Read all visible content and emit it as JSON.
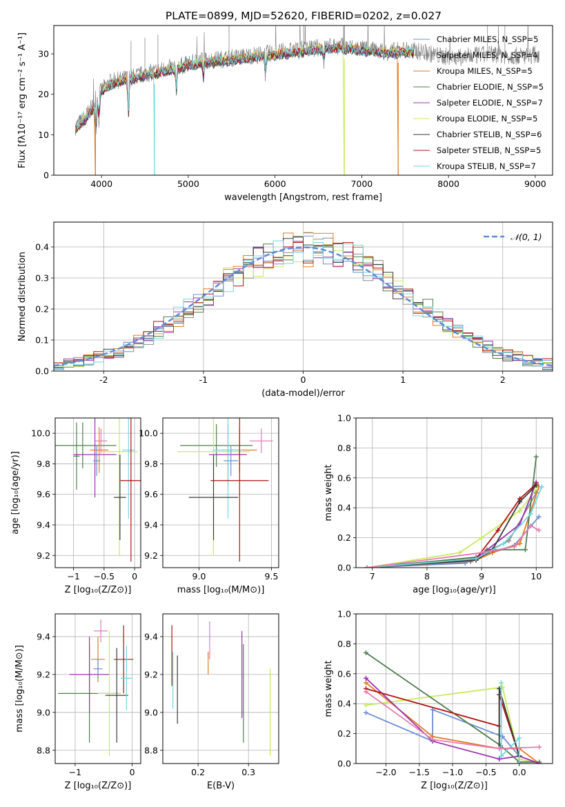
{
  "title": "PLATE=0899, MJD=52620, FIBERID=0202, z=0.027",
  "colors": {
    "Chabrier MILES": "#6b8ed6",
    "Salpeter MILES": "#8c8c8c",
    "Kroupa MILES": "#e07a1f",
    "Chabrier ELODIE": "#4e7d4e",
    "Salpeter ELODIE": "#9b30b0",
    "Kroupa ELODIE": "#c8ea5a",
    "Chabrier STELIB": "#3a3a3a",
    "Salpeter STELIB": "#b01010",
    "Kroupa STELIB": "#6fd6e0",
    "gaussian": "#5b8bd9",
    "pink": "#e37bb5"
  },
  "chart_data": [
    {
      "id": "spectrum",
      "type": "line",
      "xlabel": "wavelength [Angstrom, rest frame]",
      "ylabel": "Flux [fλ10⁻¹⁷ erg cm⁻² s⁻¹ A⁻¹]",
      "xlim": [
        3450,
        9200
      ],
      "ylim": [
        0,
        37
      ],
      "xticks": [
        4000,
        5000,
        6000,
        7000,
        8000,
        9000
      ],
      "yticks": [
        0,
        10,
        20,
        30
      ],
      "legend_position": "top-right",
      "legend": [
        "Chabrier MILES, N_SSP=5",
        "Salpeter MILES, N_SSP=4",
        "Kroupa MILES, N_SSP=5",
        "Chabrier ELODIE, N_SSP=5",
        "Salpeter ELODIE, N_SSP=7",
        "Kroupa ELODIE, N_SSP=5",
        "Chabrier STELIB, N_SSP=6",
        "Salpeter STELIB, N_SSP=5",
        "Kroupa STELIB, N_SSP=7"
      ],
      "data_envelope": {
        "x": [
          3700,
          3800,
          3900,
          4000,
          4100,
          4300,
          4500,
          4700,
          4900,
          5100,
          5300,
          5500,
          5700,
          5900,
          6100,
          6300,
          6500,
          6700,
          6900,
          7100,
          7300,
          7500,
          7700,
          7900,
          8100,
          8300,
          8500,
          8700,
          8900,
          9050
        ],
        "y": [
          12,
          14,
          17,
          21,
          23,
          24,
          25,
          26,
          27,
          28,
          28.5,
          29,
          29.5,
          30,
          30.5,
          31,
          31.5,
          32,
          31.5,
          31,
          30.5,
          31,
          30.5,
          29.5,
          29,
          29.5,
          30,
          29.5,
          29.5,
          30
        ]
      },
      "model_range": [
        3700,
        7600
      ],
      "cutoffs": [
        {
          "model": "Kroupa MILES",
          "x": 3930
        },
        {
          "model": "Kroupa STELIB",
          "x": 4610
        },
        {
          "model": "Kroupa ELODIE",
          "x": 6800
        },
        {
          "model": "Kroupa MILES",
          "x": 7420
        }
      ]
    },
    {
      "id": "residuals",
      "type": "histogram",
      "xlabel": "(data-model)/error",
      "ylabel": "Normed distribution",
      "xlim": [
        -2.5,
        2.5
      ],
      "ylim": [
        0,
        0.48
      ],
      "xticks": [
        -2,
        -1,
        0,
        1,
        2
      ],
      "yticks": [
        0.0,
        0.1,
        0.2,
        0.3,
        0.4
      ],
      "grid": true,
      "legend_position": "top-right",
      "legend": [
        "𝒩(0, 1)"
      ],
      "bin_width": 0.1
    },
    {
      "id": "age-vs-Z",
      "type": "scatter",
      "xlabel": "Z [log₁₀(Z/Z⊙)]",
      "ylabel": "age  [log₁₀(age/yr)]",
      "xlim": [
        -1.3,
        0.1
      ],
      "ylim": [
        9.12,
        10.1
      ],
      "xticks": [
        -1,
        -0.5,
        0
      ],
      "xticklabels": [
        "−1",
        "−0.5",
        "0"
      ],
      "yticks": [
        9.2,
        9.4,
        9.6,
        9.8,
        10.0
      ],
      "grid": true,
      "points": [
        {
          "model": "Chabrier ELODIE",
          "x": -0.85,
          "y": 9.92,
          "xerr": 0.55,
          "yerr": 0.15
        },
        {
          "model": "Chabrier ELODIE",
          "x": -0.95,
          "y": 9.85,
          "xerr": 0.05,
          "yerr": 0.22
        },
        {
          "model": "Salpeter ELODIE",
          "x": -0.65,
          "y": 9.86,
          "xerr": 0.35,
          "yerr": 0.28
        },
        {
          "model": "Kroupa MILES",
          "x": -0.58,
          "y": 9.89,
          "xerr": 0.15,
          "yerr": 0.15
        },
        {
          "model": "pink",
          "x": -0.55,
          "y": 9.95,
          "xerr": 0.1,
          "yerr": 0.08
        },
        {
          "model": "Chabrier MILES",
          "x": -0.62,
          "y": 9.82,
          "xerr": 0.06,
          "yerr": 0.1
        },
        {
          "model": "Kroupa ELODIE",
          "x": -0.25,
          "y": 9.88,
          "xerr": 0.3,
          "yerr": 0.68
        },
        {
          "model": "Kroupa STELIB",
          "x": -0.1,
          "y": 9.89,
          "xerr": 0.1,
          "yerr": 0.45
        },
        {
          "model": "Salpeter STELIB",
          "x": -0.06,
          "y": 9.69,
          "xerr": 0.17,
          "yerr": 0.53
        },
        {
          "model": "Chabrier STELIB",
          "x": -0.24,
          "y": 9.58,
          "xerr": 0.1,
          "yerr": 0.28
        }
      ]
    },
    {
      "id": "age-vs-mass",
      "type": "scatter",
      "xlabel": "mass [log₁₀(M/M⊙)]",
      "ylabel": "",
      "xlim": [
        8.75,
        9.55
      ],
      "ylim": [
        9.12,
        10.1
      ],
      "xticks": [
        9.0,
        9.5
      ],
      "xticklabels": [
        "9.0",
        "9.5"
      ],
      "yticks": [
        9.2,
        9.4,
        9.6,
        9.8,
        10.0
      ],
      "grid": true,
      "points": [
        {
          "model": "Chabrier ELODIE",
          "x": 9.12,
          "y": 9.92,
          "xerr": 0.25,
          "yerr": 0.14
        },
        {
          "model": "Salpeter ELODIE",
          "x": 9.2,
          "y": 9.86,
          "xerr": 0.13,
          "yerr": 0.2
        },
        {
          "model": "Kroupa ELODIE",
          "x": 9.1,
          "y": 9.88,
          "xerr": 0.25,
          "yerr": 0.68
        },
        {
          "model": "Kroupa MILES",
          "x": 9.28,
          "y": 9.89,
          "xerr": 0.12,
          "yerr": 0.15
        },
        {
          "model": "pink",
          "x": 9.43,
          "y": 9.95,
          "xerr": 0.08,
          "yerr": 0.08
        },
        {
          "model": "Chabrier MILES",
          "x": 9.22,
          "y": 9.82,
          "xerr": 0.05,
          "yerr": 0.1
        },
        {
          "model": "Kroupa STELIB",
          "x": 9.2,
          "y": 9.89,
          "xerr": 0.1,
          "yerr": 0.45
        },
        {
          "model": "Salpeter STELIB",
          "x": 9.28,
          "y": 9.69,
          "xerr": 0.2,
          "yerr": 0.53
        },
        {
          "model": "Chabrier STELIB",
          "x": 9.1,
          "y": 9.58,
          "xerr": 0.17,
          "yerr": 0.28
        }
      ]
    },
    {
      "id": "weight-vs-age",
      "type": "line",
      "xlabel": "age  [log₁₀(age/yr)]",
      "ylabel": "mass weight",
      "xlim": [
        6.7,
        10.3
      ],
      "ylim": [
        0,
        1
      ],
      "xticks": [
        7,
        8,
        9,
        10
      ],
      "yticks": [
        0.0,
        0.2,
        0.4,
        0.6,
        0.8,
        1.0
      ],
      "grid": true,
      "series": [
        {
          "model": "Kroupa ELODIE",
          "x": [
            6.9,
            8.6,
            9.0,
            9.7,
            10.0
          ],
          "y": [
            0.0,
            0.1,
            0.2,
            0.38,
            0.52
          ]
        },
        {
          "model": "Chabrier MILES",
          "x": [
            6.9,
            8.7,
            9.0,
            9.6,
            10.05
          ],
          "y": [
            0.0,
            0.03,
            0.08,
            0.15,
            0.34
          ]
        },
        {
          "model": "Salpeter MILES",
          "x": [
            6.9,
            8.8,
            9.0,
            9.5,
            10.0
          ],
          "y": [
            0.0,
            0.04,
            0.09,
            0.18,
            0.5
          ]
        },
        {
          "model": "Kroupa MILES",
          "x": [
            6.9,
            8.9,
            9.2,
            9.7,
            10.05
          ],
          "y": [
            0.0,
            0.05,
            0.1,
            0.16,
            0.54
          ]
        },
        {
          "model": "Chabrier ELODIE",
          "x": [
            6.9,
            8.9,
            9.1,
            9.8,
            10.0
          ],
          "y": [
            0.0,
            0.07,
            0.12,
            0.12,
            0.74
          ]
        },
        {
          "model": "Salpeter ELODIE",
          "x": [
            6.9,
            8.8,
            9.0,
            9.7,
            10.0
          ],
          "y": [
            0.0,
            0.05,
            0.09,
            0.29,
            0.57
          ]
        },
        {
          "model": "Salpeter STELIB",
          "x": [
            6.9,
            8.9,
            9.3,
            9.7,
            10.0
          ],
          "y": [
            0.0,
            0.06,
            0.25,
            0.46,
            0.56
          ]
        },
        {
          "model": "Chabrier STELIB",
          "x": [
            6.9,
            8.9,
            9.2,
            9.7,
            10.0
          ],
          "y": [
            0.0,
            0.05,
            0.12,
            0.44,
            0.55
          ]
        },
        {
          "model": "Kroupa STELIB",
          "x": [
            6.9,
            8.9,
            9.4,
            9.9,
            10.1
          ],
          "y": [
            0.0,
            0.06,
            0.16,
            0.36,
            0.54
          ]
        },
        {
          "model": "pink",
          "x": [
            6.9,
            9.0,
            9.6,
            9.9,
            10.05
          ],
          "y": [
            0.0,
            0.1,
            0.14,
            0.28,
            0.25
          ]
        }
      ]
    },
    {
      "id": "mass-vs-Z",
      "type": "scatter",
      "xlabel": "Z [log₁₀(Z/Z⊙)]",
      "ylabel": "mass [log₁₀(M/M⊙)]",
      "xlim": [
        -1.35,
        0.15
      ],
      "ylim": [
        8.73,
        9.52
      ],
      "xticks": [
        -1,
        0
      ],
      "xticklabels": [
        "−1",
        "0"
      ],
      "yticks": [
        8.8,
        9.0,
        9.2,
        9.4
      ],
      "grid": true,
      "points": [
        {
          "model": "Chabrier ELODIE",
          "x": -0.75,
          "y": 9.1,
          "xerr": 0.55,
          "yerr": 0.26
        },
        {
          "model": "Salpeter ELODIE",
          "x": -0.75,
          "y": 9.2,
          "xerr": 0.35,
          "yerr": 0.2
        },
        {
          "model": "Kroupa MILES",
          "x": -0.6,
          "y": 9.28,
          "xerr": 0.12,
          "yerr": 0.12
        },
        {
          "model": "pink",
          "x": -0.55,
          "y": 9.43,
          "xerr": 0.12,
          "yerr": 0.06
        },
        {
          "model": "Chabrier MILES",
          "x": -0.6,
          "y": 9.23,
          "xerr": 0.08,
          "yerr": 0.05
        },
        {
          "model": "Kroupa ELODIE",
          "x": -0.4,
          "y": 9.1,
          "xerr": 0.2,
          "yerr": 0.33
        },
        {
          "model": "Chabrier STELIB",
          "x": -0.27,
          "y": 9.09,
          "xerr": 0.2,
          "yerr": 0.25
        },
        {
          "model": "Salpeter STELIB",
          "x": -0.15,
          "y": 9.28,
          "xerr": 0.17,
          "yerr": 0.18
        },
        {
          "model": "Kroupa STELIB",
          "x": -0.1,
          "y": 9.18,
          "xerr": 0.1,
          "yerr": 0.17
        }
      ]
    },
    {
      "id": "mass-vs-EBV",
      "type": "scatter",
      "xlabel": "E(B-V)",
      "ylabel": "",
      "xlim": [
        0.13,
        0.36
      ],
      "ylim": [
        8.73,
        9.52
      ],
      "xticks": [
        0.2,
        0.3
      ],
      "xticklabels": [
        "0.2",
        "0.3"
      ],
      "yticks": [
        8.8,
        9.0,
        9.2,
        9.4
      ],
      "grid": true,
      "points": [
        {
          "model": "Salpeter STELIB",
          "x": 0.148,
          "y": 9.3,
          "xerr": 0,
          "yerr": 0.16
        },
        {
          "model": "Kroupa STELIB",
          "x": 0.15,
          "y": 9.17,
          "xerr": 0,
          "yerr": 0.15
        },
        {
          "model": "Chabrier STELIB",
          "x": 0.159,
          "y": 9.12,
          "xerr": 0,
          "yerr": 0.18
        },
        {
          "model": "Kroupa MILES",
          "x": 0.22,
          "y": 9.26,
          "xerr": 0,
          "yerr": 0.06
        },
        {
          "model": "pink",
          "x": 0.223,
          "y": 9.38,
          "xerr": 0,
          "yerr": 0.1
        },
        {
          "model": "Salpeter ELODIE",
          "x": 0.287,
          "y": 9.2,
          "xerr": 0,
          "yerr": 0.23
        },
        {
          "model": "Chabrier ELODIE",
          "x": 0.29,
          "y": 9.1,
          "xerr": 0,
          "yerr": 0.26
        },
        {
          "model": "Kroupa ELODIE",
          "x": 0.343,
          "y": 9.0,
          "xerr": 0,
          "yerr": 0.23
        }
      ]
    },
    {
      "id": "weight-vs-Z",
      "type": "line",
      "xlabel": "Z [log₁₀(Z/Z⊙)]",
      "ylabel": "mass weight",
      "xlim": [
        -2.45,
        0.5
      ],
      "ylim": [
        0,
        1
      ],
      "xticks": [
        -2.0,
        -1.5,
        -1.0,
        -0.5,
        0.0
      ],
      "xticklabels": [
        "−2.0",
        "−1.5",
        "−1.0",
        "−0.5",
        "0.0"
      ],
      "yticks": [
        0.0,
        0.2,
        0.4,
        0.6,
        0.8,
        1.0
      ],
      "grid": true,
      "series": [
        {
          "model": "Kroupa ELODIE",
          "x": [
            -2.3,
            -0.25,
            0.0,
            0.3
          ],
          "y": [
            0.39,
            0.51,
            0.03,
            0.0
          ]
        },
        {
          "model": "Chabrier MILES",
          "x": [
            -2.3,
            -1.3,
            -1.3,
            -0.25,
            0.0,
            0.3
          ],
          "y": [
            0.34,
            0.15,
            0.36,
            0.18,
            0.05,
            0.0
          ]
        },
        {
          "model": "Kroupa MILES",
          "x": [
            -2.3,
            -1.3,
            -0.3,
            0.0,
            0.3
          ],
          "y": [
            0.54,
            0.18,
            0.1,
            0.1,
            0.0
          ]
        },
        {
          "model": "Chabrier ELODIE",
          "x": [
            -2.3,
            -0.28,
            0.0,
            0.3
          ],
          "y": [
            0.74,
            0.12,
            0.01,
            0.01
          ]
        },
        {
          "model": "Salpeter ELODIE",
          "x": [
            -2.3,
            -1.3,
            -0.3,
            0.0,
            0.3
          ],
          "y": [
            0.57,
            0.15,
            0.03,
            0.05,
            0.0
          ]
        },
        {
          "model": "Salpeter STELIB",
          "x": [
            -2.3,
            -0.3,
            -0.3,
            0.0
          ],
          "y": [
            0.5,
            0.25,
            0.46,
            0.05
          ]
        },
        {
          "model": "Chabrier STELIB",
          "x": [
            -0.3,
            -0.3,
            0.0
          ],
          "y": [
            0.1,
            0.5,
            0.05
          ]
        },
        {
          "model": "Kroupa STELIB",
          "x": [
            -0.27,
            -0.27,
            0.0,
            0.0
          ],
          "y": [
            0.54,
            0.05,
            0.17,
            0.0
          ]
        },
        {
          "model": "pink",
          "x": [
            -2.3,
            -1.3,
            -0.3,
            0.3
          ],
          "y": [
            0.48,
            0.16,
            0.1,
            0.11
          ]
        }
      ]
    }
  ]
}
